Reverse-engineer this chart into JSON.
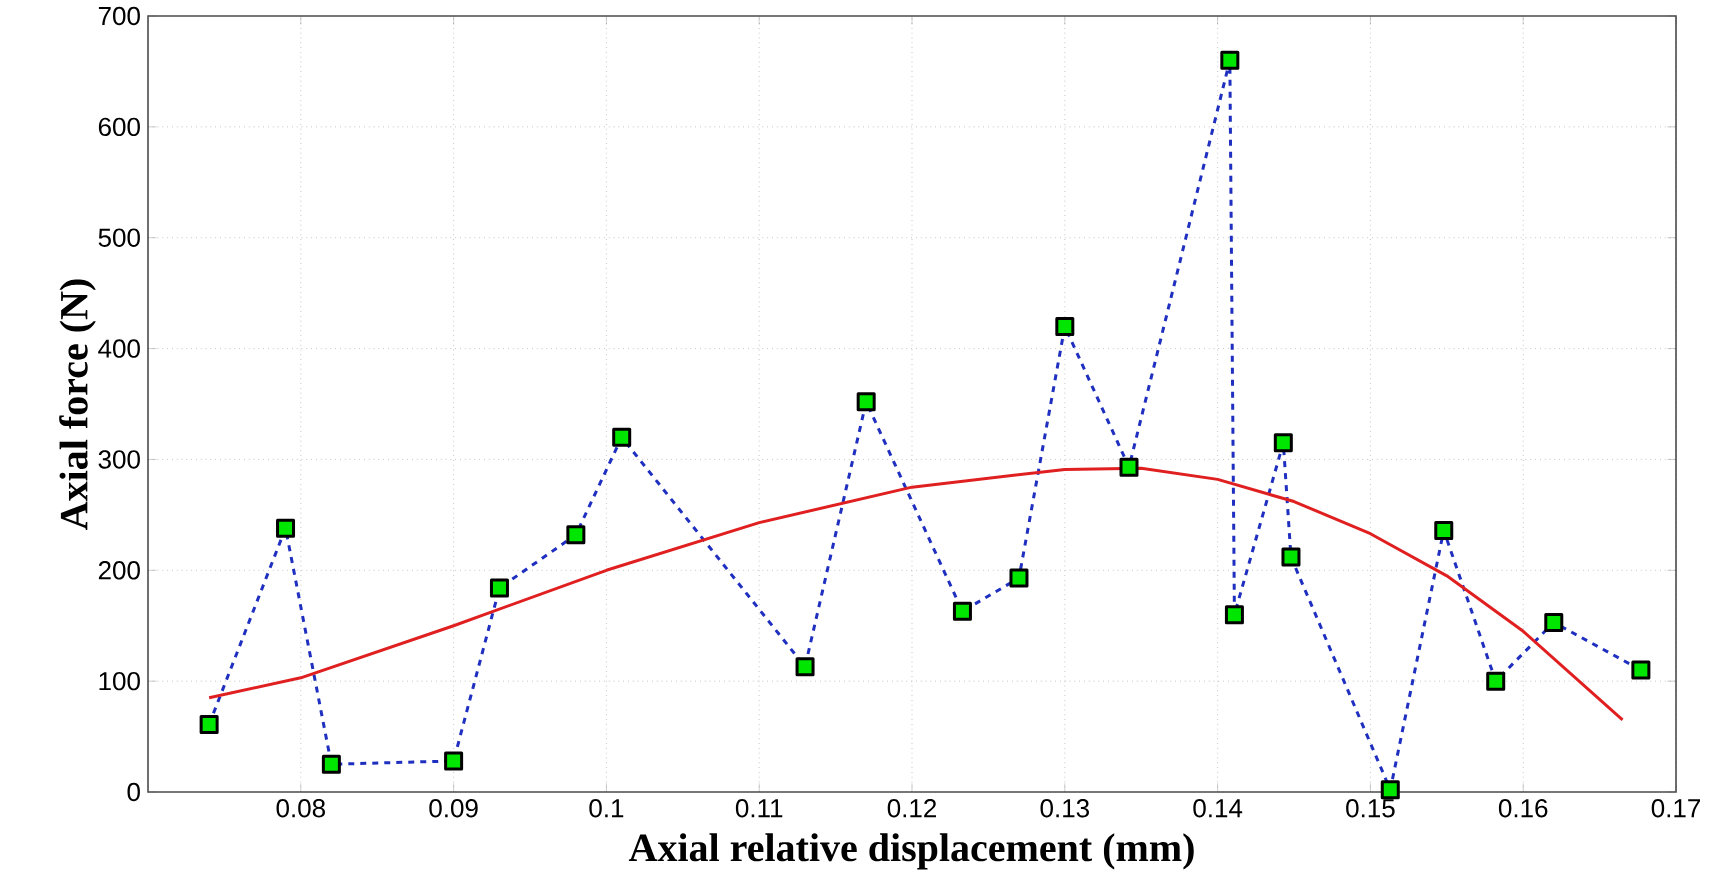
{
  "chart_data": {
    "type": "line",
    "xlabel": "Axial relative displacement  (mm)",
    "ylabel": "Axial force  (N)",
    "xlim": [
      0.07,
      0.17
    ],
    "xticks": [
      0.08,
      0.09,
      0.1,
      0.11,
      0.12,
      0.13,
      0.14,
      0.15,
      0.16,
      0.17
    ],
    "ylim": [
      0,
      700
    ],
    "yticks": [
      0,
      100,
      200,
      300,
      400,
      500,
      600,
      700
    ],
    "grid": true,
    "series": [
      {
        "color": "#1f2fbf",
        "marker": "square",
        "line_style": "dashed",
        "x": [
          0.074,
          0.079,
          0.082,
          0.09,
          0.093,
          0.098,
          0.101,
          0.113,
          0.117,
          0.1233,
          0.127,
          0.13,
          0.1342,
          0.1408,
          0.1411,
          0.1443,
          0.1448,
          0.1513,
          0.1548,
          0.1582,
          0.162,
          0.1677
        ],
        "values": [
          61,
          238,
          25,
          28,
          184,
          232,
          320,
          113,
          352,
          163,
          193,
          420,
          293,
          660,
          160,
          315,
          212,
          2,
          236,
          100,
          153,
          110
        ]
      },
      {
        "color": "#e02020",
        "marker": "none",
        "line_style": "solid",
        "x": [
          0.074,
          0.08,
          0.09,
          0.1,
          0.11,
          0.12,
          0.13,
          0.135,
          0.14,
          0.145,
          0.15,
          0.155,
          0.16,
          0.1665
        ],
        "values": [
          85,
          103,
          150,
          200,
          243,
          275,
          291,
          292,
          282,
          262,
          233,
          195,
          145,
          65
        ]
      }
    ]
  }
}
